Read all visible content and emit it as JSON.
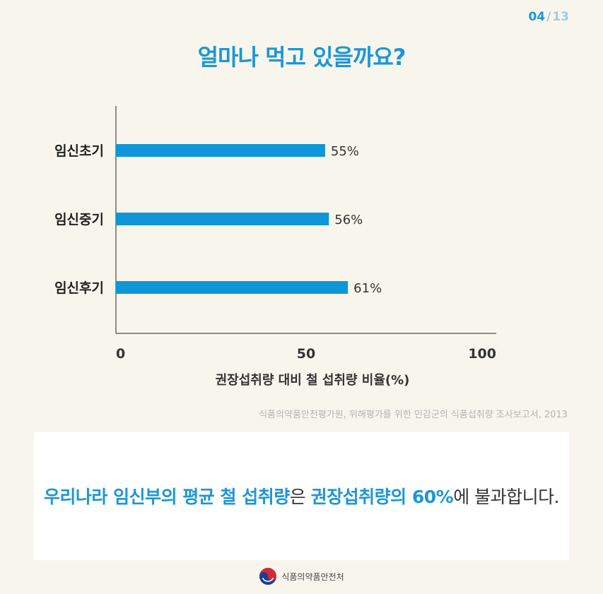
{
  "page": {
    "current": "04",
    "separator": "/",
    "total": "13"
  },
  "title": "얼마나 먹고 있을까요?",
  "chart_data": {
    "type": "bar",
    "orientation": "horizontal",
    "categories": [
      "임신초기",
      "임신중기",
      "임신후기"
    ],
    "values": [
      55,
      56,
      61
    ],
    "value_labels": [
      "55%",
      "56%",
      "61%"
    ],
    "xlabel": "권장섭취량 대비 철 섭취량 비율(%)",
    "xlim": [
      0,
      100
    ],
    "xticks": [
      0,
      50,
      100
    ],
    "bar_color": "#0e96d8",
    "grid": false
  },
  "source": "식품의약품안전평가원, 위해평가를 위한 민감군의 식품섭취량 조사보고서, 2013",
  "message": {
    "part1": "우리나라 임신부의 평균 철 섭취량",
    "part2": "은 ",
    "part3": "권장섭취량의 60%",
    "part4": "에 불과합니다."
  },
  "footer": {
    "logo_icon": "taegeuk-icon",
    "org": "식품의약품안전처"
  }
}
